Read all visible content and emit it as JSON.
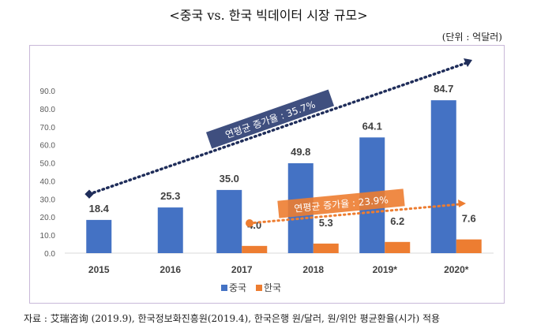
{
  "title": "<중국 vs. 한국 빅데이터 시장 규모>",
  "unit_label": "(단위 : 억달러)",
  "source_text": "자료 : 艾瑞咨询 (2019.9), 한국정보화진흥원(2019.4), 한국은행 원/달러, 원/위안 평균환율(시가) 적용",
  "colors": {
    "china": "#4472C4",
    "korea": "#ED7D31",
    "china_trend": "#1F2D5A",
    "china_annotation_bg": "#3F4F7F",
    "frame": "#C8B8D8"
  },
  "chart_data": {
    "type": "bar",
    "title": "<중국 vs. 한국 빅데이터 시장 규모>",
    "xlabel": "",
    "ylabel": "",
    "categories": [
      "2015",
      "2016",
      "2017",
      "2018",
      "2019*",
      "2020*"
    ],
    "series": [
      {
        "name": "중국",
        "values": [
          18.4,
          25.3,
          35.0,
          49.8,
          64.1,
          84.7
        ]
      },
      {
        "name": "한국",
        "values": [
          null,
          null,
          4.0,
          5.3,
          6.2,
          7.6
        ]
      }
    ],
    "data_labels": {
      "중국": [
        "18.4",
        "25.3",
        "35.0",
        "49.8",
        "64.1",
        "84.7"
      ],
      "한국": [
        "",
        "",
        "4.0",
        "5.3",
        "6.2",
        "7.6"
      ]
    },
    "ylim": [
      0,
      90
    ],
    "yticks": [
      "0.0",
      "10.0",
      "20.0",
      "30.0",
      "40.0",
      "50.0",
      "60.0",
      "70.0",
      "80.0",
      "90.0"
    ],
    "ytick_values": [
      0,
      10,
      20,
      30,
      40,
      50,
      60,
      70,
      80,
      90
    ],
    "grid": false,
    "legend": {
      "entries": [
        "중국",
        "한국"
      ],
      "placement": "bottom"
    },
    "annotations": [
      {
        "text": "연평균 증가율 : 35.7%",
        "series": "중국",
        "type": "trend-arrow",
        "from_category": "2015",
        "to_category": "2020*",
        "from_value": 34,
        "to_value": 112
      },
      {
        "text": "연평균 증가율 : 23.9%",
        "series": "한국",
        "type": "trend-arrow",
        "from_category": "2017",
        "to_category": "2020*",
        "from_value": 17,
        "to_value": 28
      }
    ]
  }
}
